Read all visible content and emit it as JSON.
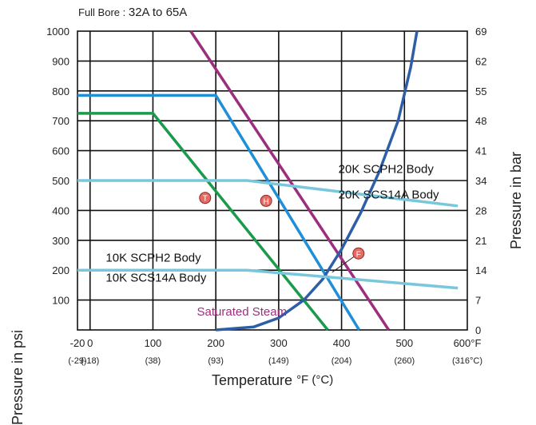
{
  "header": {
    "size_label": "Full Bore : ",
    "size_range": "32A to 65A"
  },
  "axes": {
    "ylabel_left": "Pressure in psi",
    "ylabel_right": "Pressure in bar",
    "xlabel": "Temperature ",
    "xlabel_unit": "°F (°C)"
  },
  "chart_data": {
    "type": "line",
    "title": "Full Bore : 32A to 65A",
    "xlabel": "Temperature °F (°C)",
    "ylabel": "Pressure in psi",
    "ylabel_right": "Pressure in bar",
    "xlim": [
      -20,
      600
    ],
    "ylim": [
      0,
      1000
    ],
    "grid": true,
    "x_ticks": [
      {
        "value": -20,
        "label": "-20",
        "sub": "(-29)"
      },
      {
        "value": 0,
        "label": "0",
        "sub": "(-18)"
      },
      {
        "value": 100,
        "label": "100",
        "sub": "(38)"
      },
      {
        "value": 200,
        "label": "200",
        "sub": "(93)"
      },
      {
        "value": 300,
        "label": "300",
        "sub": "(149)"
      },
      {
        "value": 400,
        "label": "400",
        "sub": "(204)"
      },
      {
        "value": 500,
        "label": "500",
        "sub": "(260)"
      },
      {
        "value": 600,
        "label": "600°F",
        "sub": "(316°C)"
      }
    ],
    "y_ticks": [
      100,
      200,
      300,
      400,
      500,
      600,
      700,
      800,
      900,
      1000
    ],
    "y2_ticks": [
      {
        "value": 0,
        "label": "0"
      },
      {
        "value": 100,
        "label": "7"
      },
      {
        "value": 200,
        "label": "14"
      },
      {
        "value": 300,
        "label": "21"
      },
      {
        "value": 400,
        "label": "28"
      },
      {
        "value": 500,
        "label": "34"
      },
      {
        "value": 600,
        "label": "41"
      },
      {
        "value": 700,
        "label": "48"
      },
      {
        "value": 800,
        "label": "55"
      },
      {
        "value": 900,
        "label": "62"
      },
      {
        "value": 1000,
        "label": "69"
      }
    ],
    "series": [
      {
        "color": "#1a9a4a",
        "points": [
          [
            -20,
            725
          ],
          [
            100,
            725
          ],
          [
            378,
            0
          ]
        ]
      },
      {
        "color": "#1e8fd8",
        "points": [
          [
            -20,
            785
          ],
          [
            200,
            785
          ],
          [
            428,
            0
          ]
        ]
      },
      {
        "color": "#9b2f7d",
        "points": [
          [
            160,
            1000
          ],
          [
            475,
            0
          ]
        ]
      },
      {
        "color": "#2e5ea8",
        "points": [
          [
            200,
            0
          ],
          [
            260,
            10
          ],
          [
            300,
            40
          ],
          [
            340,
            100
          ],
          [
            370,
            170
          ],
          [
            400,
            270
          ],
          [
            430,
            390
          ],
          [
            460,
            530
          ],
          [
            490,
            700
          ],
          [
            510,
            880
          ],
          [
            520,
            1000
          ]
        ]
      },
      {
        "name": "20K SCPH2 Body / 20K SCS14A Body",
        "color": "#79c7dc",
        "points": [
          [
            -20,
            500
          ],
          [
            250,
            500
          ],
          [
            585,
            415
          ]
        ]
      },
      {
        "name": "10K SCPH2 Body / 10K SCS14A Body",
        "color": "#79c7dc",
        "points": [
          [
            -20,
            200
          ],
          [
            250,
            200
          ],
          [
            585,
            140
          ]
        ]
      }
    ],
    "annotations": [
      {
        "text": "20K SCPH2 Body",
        "x": 395,
        "y": 525
      },
      {
        "text": "20K SCS14A Body",
        "x": 395,
        "y": 440
      },
      {
        "text": "10K SCPH2 Body",
        "x": 25,
        "y": 228
      },
      {
        "text": "10K SCS14A Body",
        "x": 25,
        "y": 162
      },
      {
        "text": "Saturated Steam",
        "x": 170,
        "y": 48,
        "color": "#9b2f7d"
      }
    ],
    "markers": [
      {
        "text": "T",
        "x": 183,
        "y": 442
      },
      {
        "text": "H",
        "x": 280,
        "y": 432
      },
      {
        "text": "F",
        "x": 427,
        "y": 256
      }
    ],
    "marker_leader": {
      "from": [
        427,
        256
      ],
      "to": [
        385,
        193
      ]
    }
  }
}
